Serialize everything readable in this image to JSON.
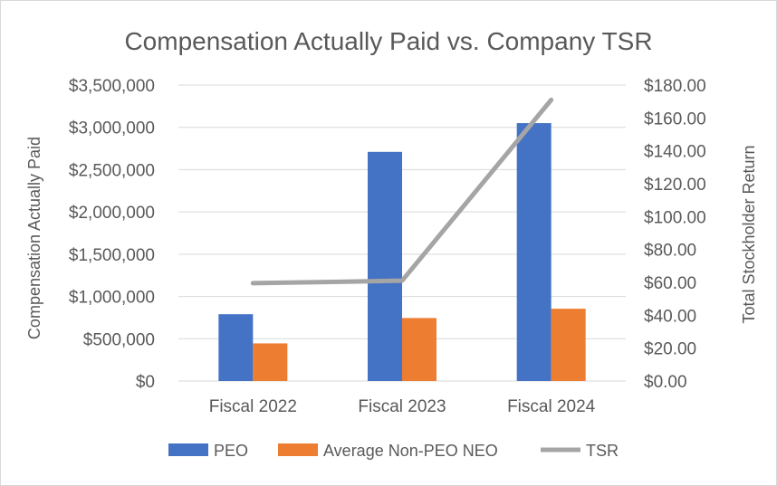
{
  "chart_data": {
    "type": "bar",
    "title": "Compensation Actually Paid vs. Company TSR",
    "categories": [
      "Fiscal 2022",
      "Fiscal 2023",
      "Fiscal 2024"
    ],
    "series": [
      {
        "name": "PEO",
        "type": "bar",
        "axis": "left",
        "color": "#4472C4",
        "values": [
          790000,
          2710000,
          3050000
        ]
      },
      {
        "name": "Average Non-PEO NEO",
        "type": "bar",
        "axis": "left",
        "color": "#ED7D31",
        "values": [
          445000,
          745000,
          855000
        ]
      },
      {
        "name": "TSR",
        "type": "line",
        "axis": "right",
        "color": "#A5A5A5",
        "values": [
          59.5,
          61.0,
          171.0
        ]
      }
    ],
    "y_left": {
      "label": "Compensation Actually Paid",
      "ylim": [
        0,
        3500000
      ],
      "ticks": [
        0,
        500000,
        1000000,
        1500000,
        2000000,
        2500000,
        3000000,
        3500000
      ],
      "tick_labels": [
        "$0",
        "$500,000",
        "$1,000,000",
        "$1,500,000",
        "$2,000,000",
        "$2,500,000",
        "$3,000,000",
        "$3,500,000"
      ]
    },
    "y_right": {
      "label": "Total Stockholder Return",
      "ylim": [
        0,
        180
      ],
      "ticks": [
        0,
        20,
        40,
        60,
        80,
        100,
        120,
        140,
        160,
        180
      ],
      "tick_labels": [
        "$0.00",
        "$20.00",
        "$40.00",
        "$60.00",
        "$80.00",
        "$100.00",
        "$120.00",
        "$140.00",
        "$160.00",
        "$180.00"
      ]
    },
    "grid": true,
    "legend_position": "bottom"
  }
}
